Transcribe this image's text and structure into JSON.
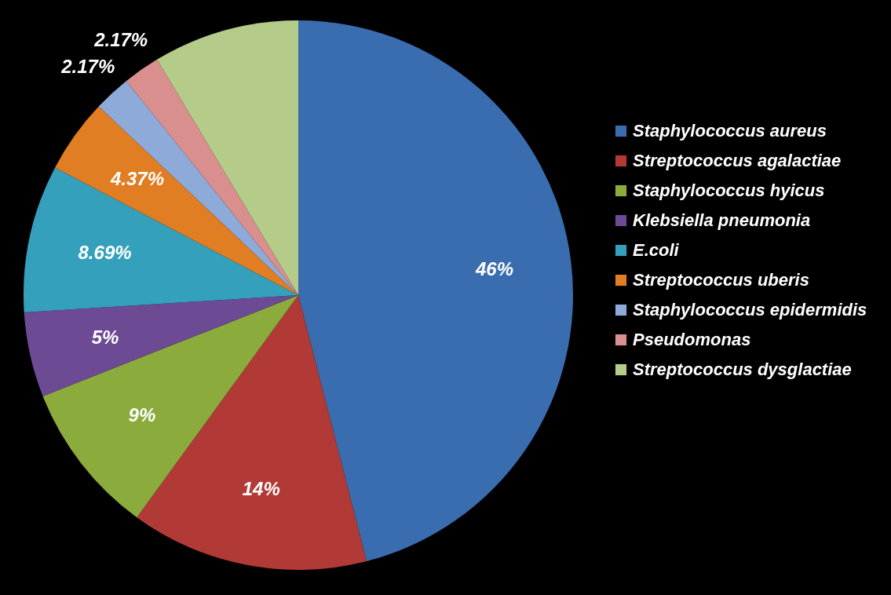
{
  "chart_data": {
    "type": "pie",
    "categories": [
      "Staphylococcus aureus",
      "Streptococcus agalactiae",
      "Staphylococcus hyicus",
      "Klebsiella pneumonia",
      "E.coli",
      "Streptococcus uberis",
      "Staphylococcus epidermidis",
      "Pseudomonas",
      "Streptococcus dysglactiae"
    ],
    "values": [
      46,
      14,
      9,
      5,
      8.69,
      4.37,
      2.17,
      2.17,
      8.6
    ],
    "value_labels": [
      "46%",
      "14%",
      "9%",
      "5%",
      "8.69%",
      "4.37%",
      "2.17%",
      "2.17%",
      null
    ],
    "colors": [
      "#3a6db0",
      "#b23a36",
      "#8bab3d",
      "#6d4a94",
      "#34a0bc",
      "#e17d22",
      "#8eaad9",
      "#d98f8e",
      "#b4cb8a"
    ],
    "legend": "right"
  }
}
